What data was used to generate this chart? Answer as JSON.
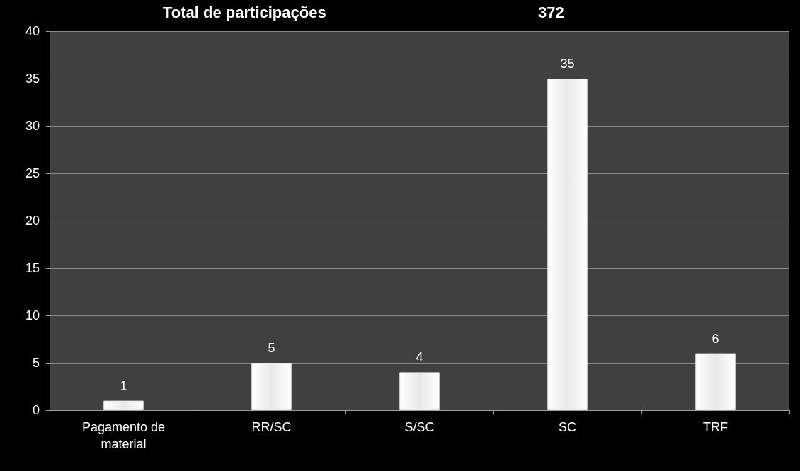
{
  "chart_data": {
    "type": "bar",
    "annotations": [
      "Total de participações",
      "372"
    ],
    "categories": [
      "Pagamento de\nmaterial",
      "RR/SC",
      "S/SC",
      "SC",
      "TRF"
    ],
    "values": [
      1,
      5,
      4,
      35,
      6
    ],
    "color": "#e8e8e8",
    "ylim": [
      0,
      40
    ],
    "yticks": [
      0,
      5,
      10,
      15,
      20,
      25,
      30,
      35,
      40
    ],
    "grid": "y",
    "data_labels": true
  }
}
